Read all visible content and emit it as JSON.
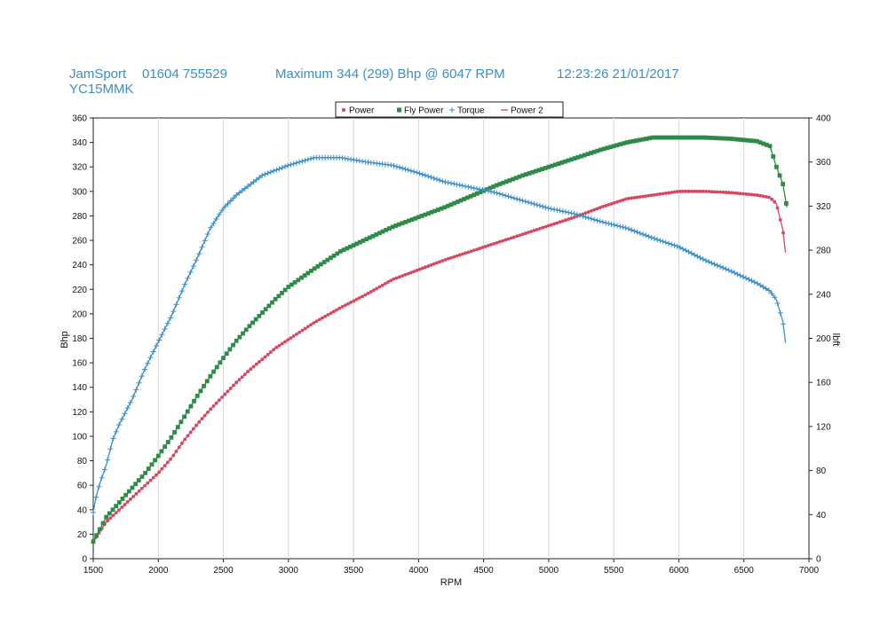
{
  "header": {
    "company": "JamSport",
    "phone": "01604 755529",
    "maximum": "Maximum 344 (299) Bhp @ 6047 RPM",
    "datetime": "12:23:26 21/01/2017",
    "reg": "YC15MMK"
  },
  "chart_data": {
    "type": "line",
    "xlabel": "RPM",
    "ylabel": "Bhp",
    "y2label": "lbft",
    "xlim": [
      1500,
      7000
    ],
    "ylim": [
      0,
      360
    ],
    "y2lim": [
      0,
      400
    ],
    "xticks": [
      1500,
      2000,
      2500,
      3000,
      3500,
      4000,
      4500,
      5000,
      5500,
      6000,
      6500,
      7000
    ],
    "yticks": [
      0,
      20,
      40,
      60,
      80,
      100,
      120,
      140,
      160,
      180,
      200,
      220,
      240,
      260,
      280,
      300,
      320,
      340,
      360
    ],
    "y2ticks": [
      0,
      40,
      80,
      120,
      160,
      200,
      240,
      280,
      320,
      360,
      400
    ],
    "grid": "vertical",
    "legend": [
      "Power",
      "Fly Power",
      "Torque",
      "Power 2"
    ],
    "legend_position": "top-center",
    "colors": {
      "power": "#d9455e",
      "fly": "#2e8b47",
      "torque": "#3a8fc8",
      "power2": "#d9455e"
    },
    "series": [
      {
        "name": "Power",
        "axis": "left",
        "x": [
          1500,
          1600,
          1700,
          1800,
          1900,
          2000,
          2100,
          2200,
          2300,
          2400,
          2500,
          2600,
          2700,
          2800,
          2900,
          3000,
          3200,
          3400,
          3600,
          3800,
          4000,
          4200,
          4400,
          4600,
          4800,
          5000,
          5200,
          5400,
          5600,
          5800,
          6000,
          6200,
          6400,
          6600,
          6700,
          6750,
          6800,
          6820
        ],
        "y": [
          14,
          30,
          40,
          50,
          60,
          70,
          82,
          97,
          110,
          122,
          133,
          144,
          154,
          163,
          172,
          179,
          193,
          205,
          216,
          228,
          236,
          244,
          251,
          258,
          265,
          272,
          279,
          287,
          294,
          297,
          300,
          300,
          299,
          297,
          295,
          290,
          268,
          250
        ]
      },
      {
        "name": "Fly Power",
        "axis": "left",
        "x": [
          1500,
          1600,
          1700,
          1800,
          1900,
          2000,
          2100,
          2200,
          2300,
          2400,
          2500,
          2600,
          2700,
          2800,
          2900,
          3000,
          3200,
          3400,
          3600,
          3800,
          4000,
          4200,
          4400,
          4600,
          4800,
          5000,
          5200,
          5400,
          5600,
          5800,
          6000,
          6200,
          6400,
          6600,
          6700,
          6750,
          6800,
          6830
        ],
        "y": [
          14,
          34,
          46,
          58,
          70,
          84,
          99,
          116,
          133,
          149,
          164,
          178,
          190,
          201,
          212,
          222,
          237,
          251,
          261,
          271,
          279,
          287,
          296,
          305,
          313,
          320,
          327,
          334,
          340,
          344,
          344,
          344,
          343,
          341,
          337,
          320,
          306,
          287
        ]
      },
      {
        "name": "Torque",
        "axis": "right",
        "x": [
          1500,
          1520,
          1550,
          1600,
          1650,
          1700,
          1800,
          1900,
          2000,
          2100,
          2200,
          2300,
          2400,
          2500,
          2600,
          2800,
          3000,
          3200,
          3400,
          3600,
          3800,
          4000,
          4200,
          4400,
          4600,
          4800,
          5000,
          5200,
          5400,
          5600,
          5800,
          6000,
          6200,
          6400,
          6600,
          6700,
          6750,
          6800,
          6820
        ],
        "y": [
          42,
          55,
          68,
          85,
          108,
          122,
          145,
          173,
          197,
          220,
          248,
          273,
          300,
          318,
          330,
          348,
          357,
          364,
          364,
          360,
          357,
          350,
          342,
          337,
          332,
          325,
          318,
          313,
          306,
          300,
          291,
          283,
          271,
          261,
          250,
          243,
          235,
          215,
          196
        ]
      },
      {
        "name": "Power 2",
        "axis": "left",
        "x": [],
        "y": []
      }
    ]
  }
}
